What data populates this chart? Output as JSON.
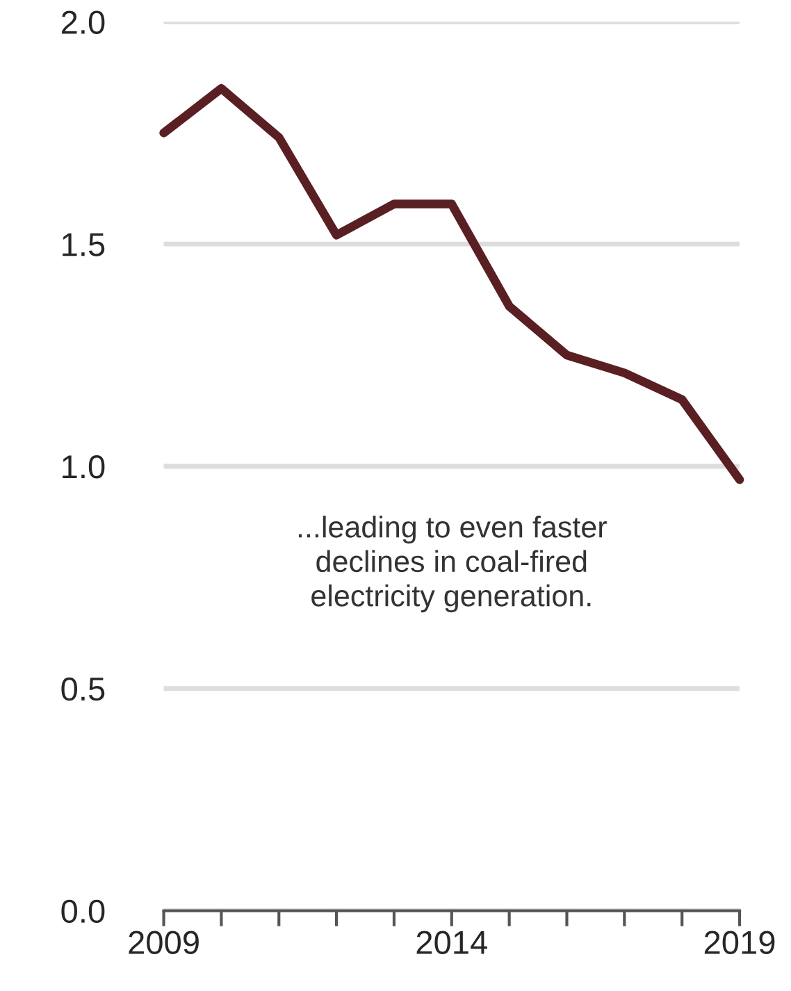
{
  "chart_data": {
    "type": "line",
    "x": [
      2009,
      2010,
      2011,
      2012,
      2013,
      2014,
      2015,
      2016,
      2017,
      2018,
      2019
    ],
    "series": [
      {
        "color": "#5a1f22",
        "values": [
          1.75,
          1.85,
          1.74,
          1.52,
          1.59,
          1.59,
          1.36,
          1.25,
          1.21,
          1.15,
          0.97
        ]
      }
    ],
    "xlim": [
      2009,
      2019
    ],
    "xticks": [
      2009,
      {
        "value": 2010,
        "label": null
      },
      {
        "value": 2011,
        "label": null
      },
      {
        "value": 2012,
        "label": null
      },
      {
        "value": 2013,
        "label": null
      },
      2014,
      {
        "value": 2015,
        "label": null
      },
      {
        "value": 2016,
        "label": null
      },
      {
        "value": 2017,
        "label": null
      },
      {
        "value": 2018,
        "label": null
      },
      2019
    ],
    "ylim": [
      0,
      2
    ],
    "yticks": [
      {
        "value": 0,
        "label": "0.0"
      },
      {
        "value": 0.5,
        "label": "0.5"
      },
      {
        "value": 1,
        "label": "1.0"
      },
      {
        "value": 1.5,
        "label": "1.5"
      },
      {
        "value": 2,
        "label": "2.0"
      }
    ],
    "grid": "y",
    "annotations": [
      "...leading to even faster\ndeclines in coal-fired\nelectricity generation."
    ]
  }
}
